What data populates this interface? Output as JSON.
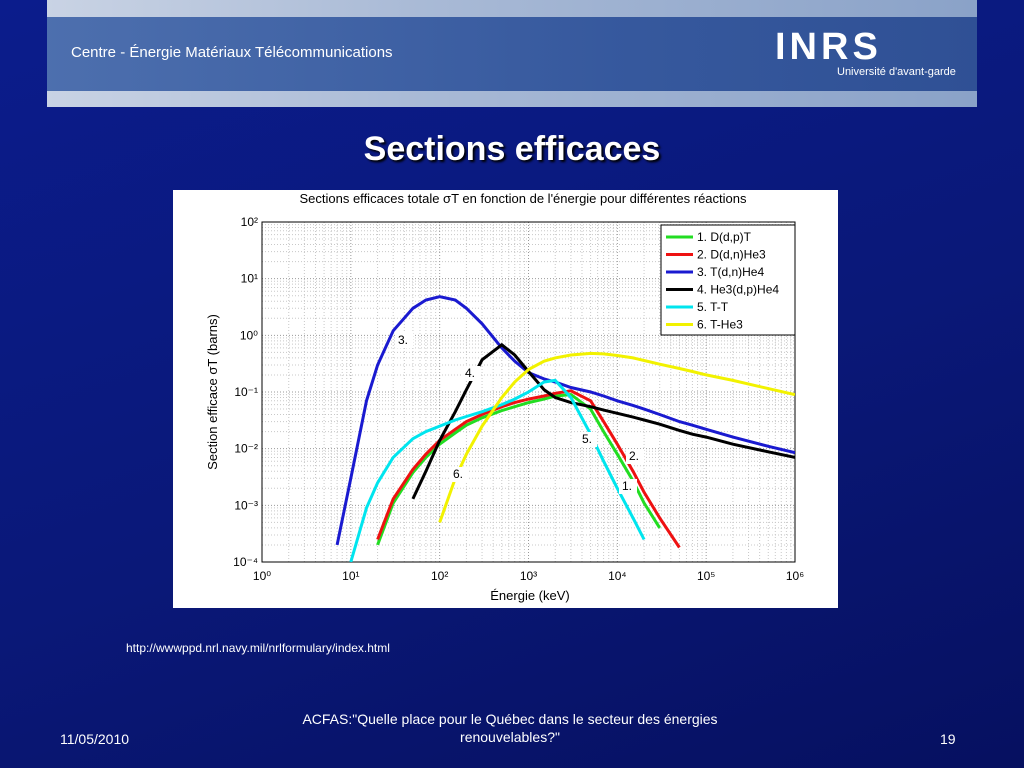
{
  "header": {
    "left": "Centre - Énergie Matériaux Télécommunications",
    "logo": "INRS",
    "tagline": "Université d'avant-garde"
  },
  "slide_title": "Sections efficaces",
  "source": "http://wwwppd.nrl.navy.mil/nrlformulary/index.html",
  "footer": {
    "date": "11/05/2010",
    "center": "ACFAS:\"Quelle place pour le Québec dans le secteur des énergies renouvelables?\"",
    "page": "19"
  },
  "chart_data": {
    "type": "line",
    "title": "Sections efficaces totale σT en fonction de l'énergie pour différentes réactions",
    "x_label": "Énergie (keV)",
    "y_label": "Section efficace σT (barns)",
    "log_x": true,
    "log_y": true,
    "grid": true,
    "minor_grid": true,
    "legend": "upper right",
    "xlim": [
      1,
      1000000
    ],
    "ylim": [
      0.0001,
      100
    ],
    "xticks": [
      {
        "value": 1,
        "label": "10⁰"
      },
      {
        "value": 10,
        "label": "10¹"
      },
      {
        "value": 100,
        "label": "10²"
      },
      {
        "value": 1000,
        "label": "10³"
      },
      {
        "value": 10000,
        "label": "10⁴"
      },
      {
        "value": 100000,
        "label": "10⁵"
      },
      {
        "value": 1000000,
        "label": "10⁶"
      }
    ],
    "yticks": [
      {
        "value": 0.0001,
        "label": "10⁻⁴"
      },
      {
        "value": 0.001,
        "label": "10⁻³"
      },
      {
        "value": 0.01,
        "label": "10⁻²"
      },
      {
        "value": 0.1,
        "label": "10⁻¹"
      },
      {
        "value": 1,
        "label": "10⁰"
      },
      {
        "value": 10,
        "label": "10¹"
      },
      {
        "value": 100,
        "label": "10²"
      }
    ],
    "x": [
      5,
      7,
      10,
      15,
      20,
      30,
      50,
      70,
      100,
      150,
      200,
      300,
      500,
      700,
      1000,
      1500,
      2000,
      3000,
      5000,
      7000,
      10000,
      15000,
      20000,
      30000,
      50000,
      70000,
      100000,
      200000,
      500000,
      1000000
    ],
    "series": [
      {
        "name": "1. D(d,p)T",
        "color": "#22dd22",
        "values": [
          null,
          null,
          null,
          null,
          0.0002,
          0.0011,
          0.0038,
          0.007,
          0.012,
          0.019,
          0.026,
          0.035,
          0.047,
          0.055,
          0.065,
          0.075,
          0.085,
          0.09,
          0.05,
          0.02,
          0.008,
          0.0027,
          0.0011,
          0.0004,
          null,
          null,
          null,
          null,
          null,
          null
        ]
      },
      {
        "name": "2. D(d,n)He3",
        "color": "#ee1111",
        "values": [
          null,
          null,
          null,
          null,
          0.00025,
          0.0013,
          0.0043,
          0.008,
          0.014,
          0.022,
          0.03,
          0.04,
          0.055,
          0.065,
          0.075,
          0.085,
          0.095,
          0.105,
          0.07,
          0.03,
          0.012,
          0.004,
          0.0017,
          0.0006,
          0.00018,
          null,
          null,
          null,
          null,
          null
        ]
      },
      {
        "name": "3. T(d,n)He4",
        "color": "#1a1ad0",
        "values": [
          null,
          0.0002,
          0.003,
          0.07,
          0.3,
          1.2,
          3.0,
          4.2,
          4.8,
          4.2,
          3.0,
          1.6,
          0.6,
          0.35,
          0.22,
          0.17,
          0.15,
          0.12,
          0.1,
          0.085,
          0.07,
          0.058,
          0.05,
          0.04,
          0.03,
          0.026,
          0.022,
          0.016,
          0.011,
          0.0085
        ]
      },
      {
        "name": "4. He3(d,p)He4",
        "color": "#000000",
        "values": [
          null,
          null,
          null,
          null,
          null,
          null,
          0.0013,
          0.004,
          0.014,
          0.045,
          0.11,
          0.37,
          0.68,
          0.45,
          0.23,
          0.11,
          0.08,
          0.065,
          0.055,
          0.048,
          0.042,
          0.036,
          0.032,
          0.027,
          0.021,
          0.018,
          0.016,
          0.012,
          0.0088,
          0.007
        ]
      },
      {
        "name": "5. T-T",
        "color": "#00e5ee",
        "values": [
          null,
          null,
          0.0001,
          0.0009,
          0.0025,
          0.007,
          0.015,
          0.02,
          0.025,
          0.032,
          0.037,
          0.045,
          0.06,
          0.075,
          0.1,
          0.15,
          0.16,
          0.08,
          0.018,
          0.006,
          0.002,
          0.0006,
          0.00025,
          null,
          null,
          null,
          null,
          null,
          null,
          null
        ]
      },
      {
        "name": "6. T-He3",
        "color": "#f2f200",
        "values": [
          null,
          null,
          null,
          null,
          null,
          null,
          null,
          null,
          0.0005,
          0.003,
          0.008,
          0.025,
          0.08,
          0.15,
          0.25,
          0.35,
          0.4,
          0.45,
          0.48,
          0.47,
          0.44,
          0.4,
          0.36,
          0.31,
          0.26,
          0.23,
          0.2,
          0.16,
          0.115,
          0.09
        ]
      }
    ],
    "annotations": [
      "1.",
      "2.",
      "3.",
      "4.",
      "5.",
      "6."
    ]
  }
}
